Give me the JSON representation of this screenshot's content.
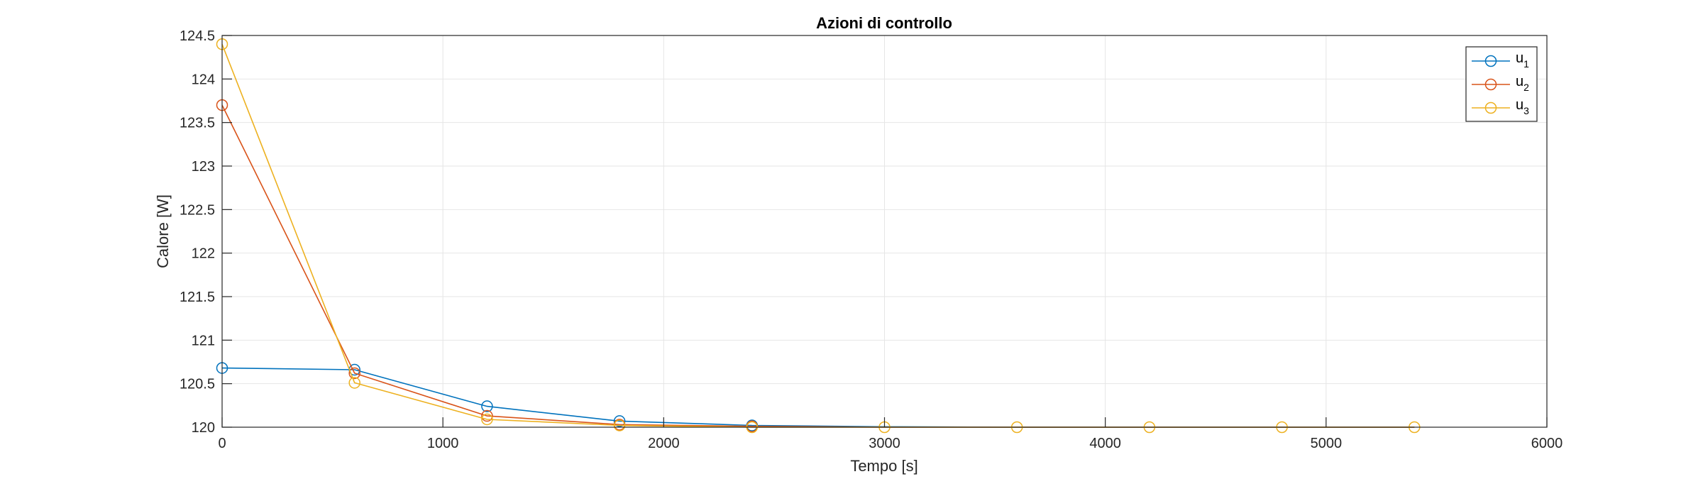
{
  "chart_data": {
    "type": "line",
    "title": "Azioni di controllo",
    "xlabel": "Tempo [s]",
    "ylabel": "Calore [W]",
    "xlim": [
      0,
      6000
    ],
    "ylim": [
      120,
      124.5
    ],
    "xticks": [
      0,
      1000,
      2000,
      3000,
      4000,
      5000,
      6000
    ],
    "xtick_labels": [
      "0",
      "1000",
      "2000",
      "3000",
      "4000",
      "5000",
      "6000"
    ],
    "yticks": [
      120,
      120.5,
      121,
      121.5,
      122,
      122.5,
      123,
      123.5,
      124,
      124.5
    ],
    "ytick_labels": [
      "120",
      "120.5",
      "121",
      "121.5",
      "122",
      "122.5",
      "123",
      "123.5",
      "124",
      "124.5"
    ],
    "grid": true,
    "legend_position": "top-right",
    "marker": "circle",
    "series": [
      {
        "name": "u1",
        "label_base": "u",
        "label_sub": "1",
        "color": "#0072BD",
        "x": [
          0,
          600,
          1200,
          1800,
          2400,
          3000,
          3600,
          4200,
          4800,
          5400
        ],
        "y": [
          120.68,
          120.66,
          120.24,
          120.07,
          120.02,
          120.005,
          120.0,
          120.0,
          120.0,
          120.0
        ],
        "markers": [
          true,
          true,
          true,
          true,
          true,
          false,
          false,
          false,
          false,
          false
        ]
      },
      {
        "name": "u2",
        "label_base": "u",
        "label_sub": "2",
        "color": "#D95319",
        "x": [
          0,
          600,
          1200,
          1800,
          2400,
          3000,
          3600,
          4200,
          4800,
          5400
        ],
        "y": [
          123.7,
          120.62,
          120.13,
          120.03,
          120.01,
          120.0,
          120.0,
          120.0,
          120.0,
          120.0
        ],
        "markers": [
          true,
          true,
          true,
          true,
          true,
          false,
          false,
          false,
          false,
          false
        ]
      },
      {
        "name": "u3",
        "label_base": "u",
        "label_sub": "3",
        "color": "#EDB120",
        "x": [
          0,
          600,
          1200,
          1800,
          2400,
          3000,
          3600,
          4200,
          4800,
          5400
        ],
        "y": [
          124.4,
          120.51,
          120.09,
          120.02,
          120.0,
          120.0,
          120.0,
          120.0,
          120.0,
          120.0
        ],
        "markers": [
          true,
          true,
          true,
          true,
          true,
          true,
          true,
          true,
          true,
          true
        ]
      }
    ]
  }
}
